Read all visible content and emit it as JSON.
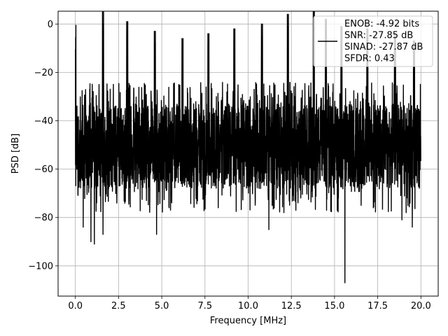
{
  "chart_data": {
    "type": "line",
    "title": "",
    "xlabel": "Frequency [MHz]",
    "ylabel": "PSD [dB]",
    "xlim": [
      -1.0,
      21.0
    ],
    "ylim": [
      -112.5,
      5.3
    ],
    "x_ticks": [
      0.0,
      2.5,
      5.0,
      7.5,
      10.0,
      12.5,
      15.0,
      17.5,
      20.0
    ],
    "x_tick_labels": [
      "0.0",
      "2.5",
      "5.0",
      "7.5",
      "10.0",
      "12.5",
      "15.0",
      "17.5",
      "20.0"
    ],
    "y_ticks": [
      0,
      -20,
      -40,
      -60,
      -80,
      -100
    ],
    "y_tick_labels": [
      "0",
      "−20",
      "−40",
      "−60",
      "−80",
      "−100"
    ],
    "grid": true,
    "legend": {
      "placement": "top-right",
      "entries": [
        "ENOB: -4.92 bits",
        "SNR: -27.85 dB",
        "SINAD: -27.87 dB",
        "SFDR: 0.43"
      ]
    },
    "series": [
      {
        "color": "#000000",
        "noise_floor": {
          "upper_envelope_db": -33,
          "lower_envelope_db": -68,
          "x_range": [
            0.0,
            20.0
          ]
        },
        "peaks": [
          {
            "x": 0.0,
            "y": -10.5
          },
          {
            "x": 1.6,
            "y": -5
          },
          {
            "x": 3.0,
            "y": -9
          },
          {
            "x": 4.6,
            "y": -13
          },
          {
            "x": 6.2,
            "y": -16
          },
          {
            "x": 7.7,
            "y": -14
          },
          {
            "x": 9.2,
            "y": -12
          },
          {
            "x": 10.8,
            "y": -10
          },
          {
            "x": 12.3,
            "y": -6
          },
          {
            "x": 13.8,
            "y": 0
          },
          {
            "x": 14.5,
            "y": -8
          },
          {
            "x": 15.4,
            "y": -11
          },
          {
            "x": 16.9,
            "y": -12
          },
          {
            "x": 18.5,
            "y": -14
          },
          {
            "x": 19.6,
            "y": -17
          }
        ],
        "dips": [
          {
            "x": 0.45,
            "y": -84
          },
          {
            "x": 0.9,
            "y": -90
          },
          {
            "x": 1.1,
            "y": -91
          },
          {
            "x": 1.6,
            "y": -87
          },
          {
            "x": 4.7,
            "y": -87
          },
          {
            "x": 11.2,
            "y": -85
          },
          {
            "x": 15.6,
            "y": -107
          },
          {
            "x": 18.9,
            "y": -81
          },
          {
            "x": 19.5,
            "y": -84
          }
        ]
      }
    ]
  },
  "colors": {
    "line": "#000000",
    "grid": "#b0b0b0",
    "axes": "#000000",
    "legend_border": "#cccccc"
  }
}
